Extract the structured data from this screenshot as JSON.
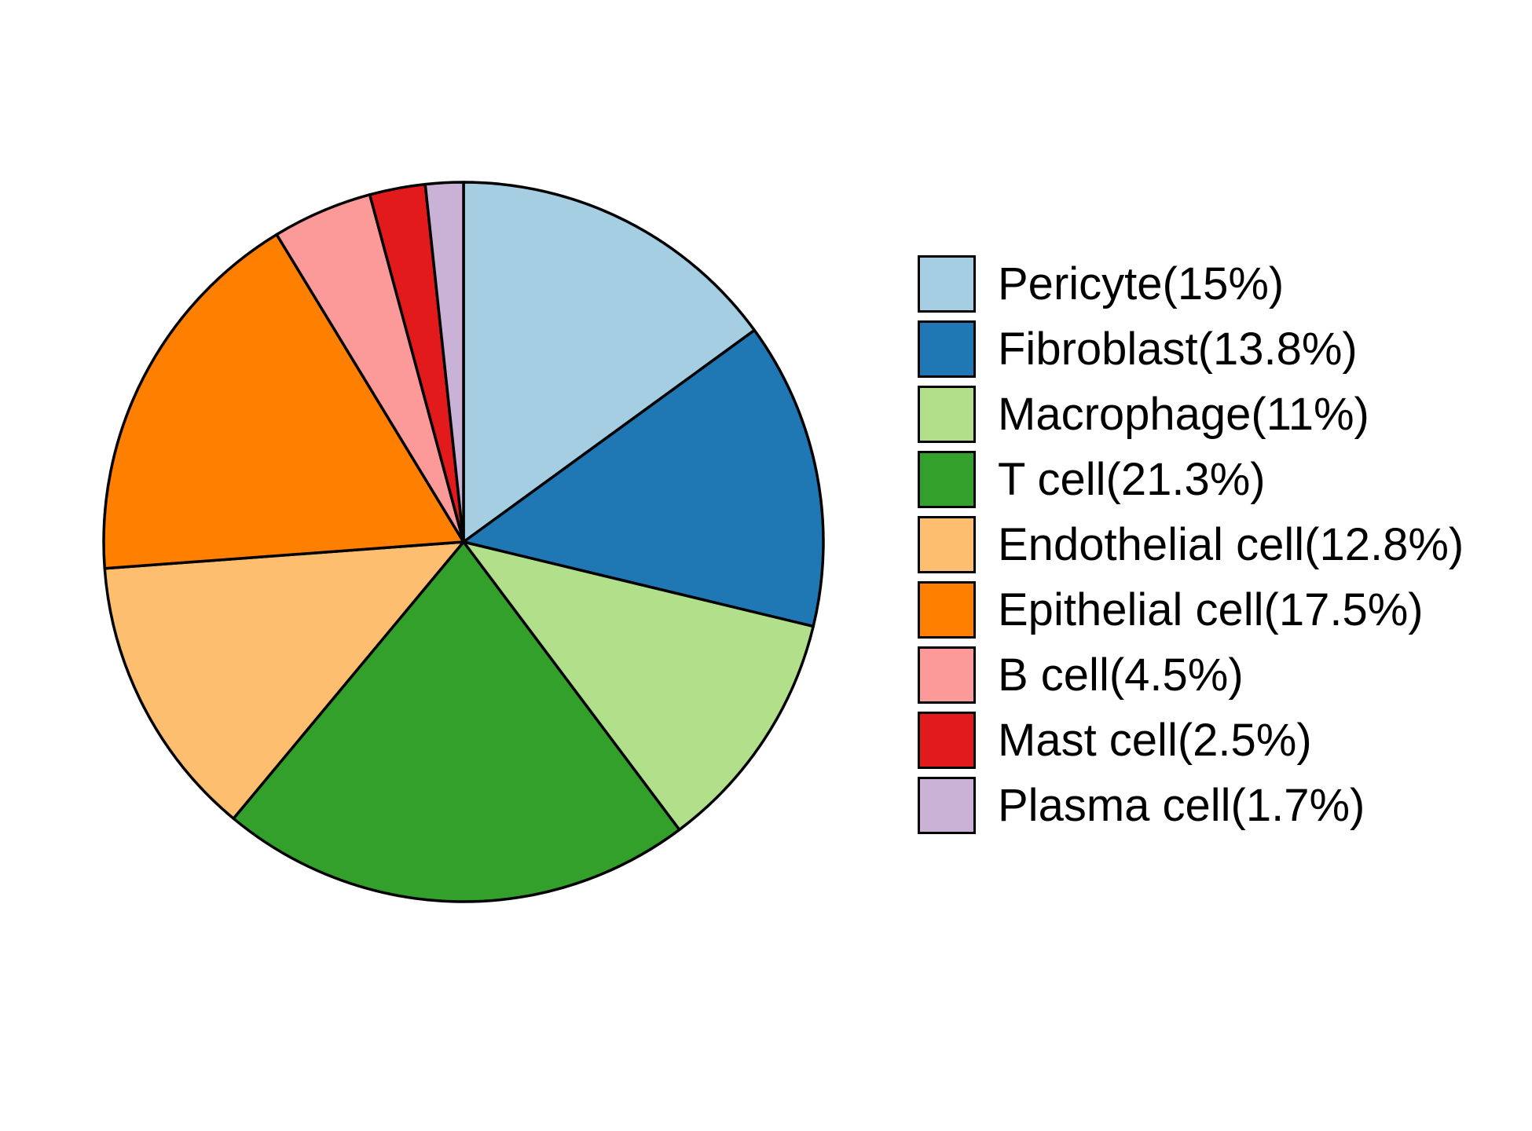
{
  "chart_data": {
    "type": "pie",
    "title": "",
    "legend_position": "right",
    "slices": [
      {
        "label": "Pericyte(15%)",
        "value": 15.0,
        "color": "#A6CEE3"
      },
      {
        "label": "Fibroblast(13.8%)",
        "value": 13.8,
        "color": "#1F78B4"
      },
      {
        "label": "Macrophage(11%)",
        "value": 11.0,
        "color": "#B2DF8A"
      },
      {
        "label": "T cell(21.3%)",
        "value": 21.3,
        "color": "#33A02C"
      },
      {
        "label": "Endothelial cell(12.8%)",
        "value": 12.8,
        "color": "#FDBF6F"
      },
      {
        "label": "Epithelial cell(17.5%)",
        "value": 17.5,
        "color": "#FF7F00"
      },
      {
        "label": "B cell(4.5%)",
        "value": 4.5,
        "color": "#FB9A99"
      },
      {
        "label": "Mast cell(2.5%)",
        "value": 2.5,
        "color": "#E31A1C"
      },
      {
        "label": "Plasma cell(1.7%)",
        "value": 1.7,
        "color": "#CAB2D6"
      }
    ],
    "direction": "clockwise",
    "start_angle": "top",
    "outline_color": "#000000"
  }
}
